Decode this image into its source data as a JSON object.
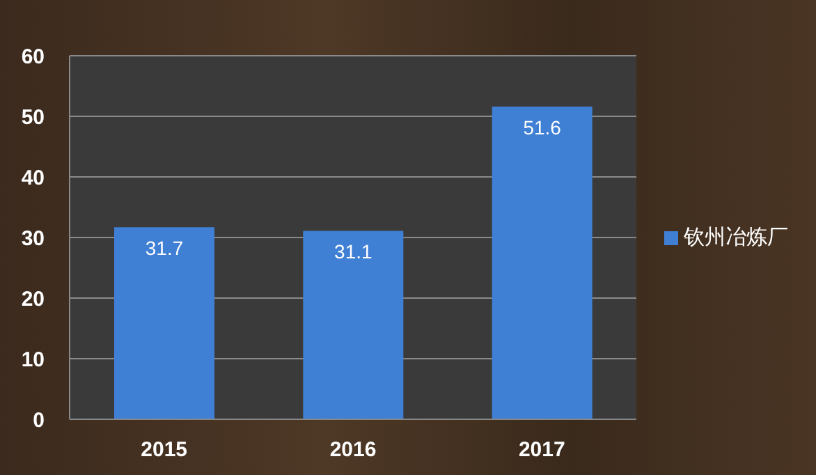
{
  "chart_data": {
    "type": "bar",
    "categories": [
      "2015",
      "2016",
      "2017"
    ],
    "series": [
      {
        "name": "钦州冶炼厂",
        "color": "#3f7fd4",
        "values": [
          31.7,
          31.1,
          51.6
        ]
      }
    ],
    "ylim": [
      0,
      60
    ],
    "yticks": [
      0,
      10,
      20,
      30,
      40,
      50,
      60
    ],
    "grid": "y",
    "legend": "right",
    "data_labels": true
  }
}
